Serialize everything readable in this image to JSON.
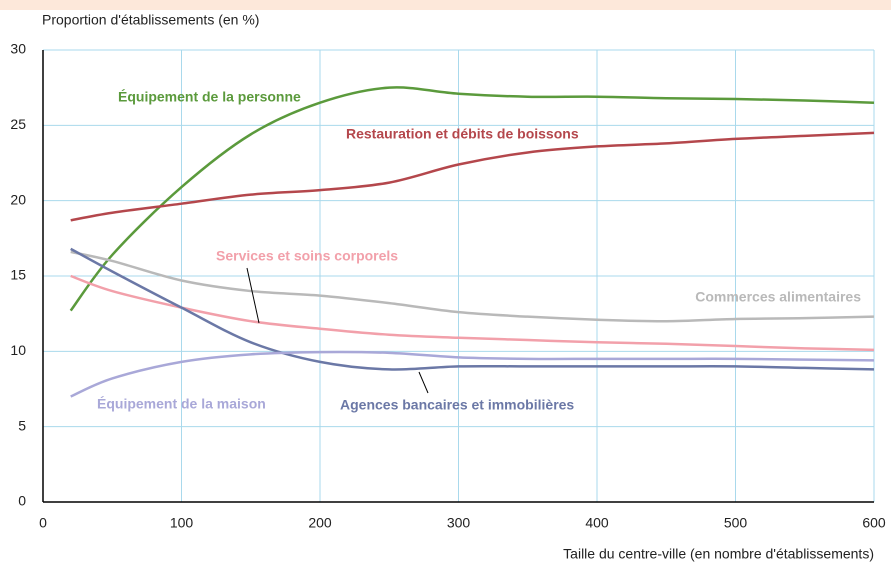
{
  "chart_data": {
    "type": "line",
    "y_label": "Proportion d'établissements (en %)",
    "x_label": "Taille du centre-ville (en nombre d'établissements)",
    "x": [
      20,
      50,
      100,
      150,
      200,
      250,
      300,
      350,
      400,
      450,
      500,
      550,
      600
    ],
    "series": [
      {
        "name": "Équipement de la personne",
        "color": "#5b9a3c",
        "values": [
          12.7,
          16.4,
          20.9,
          24.4,
          26.5,
          27.5,
          27.1,
          26.9,
          26.9,
          26.8,
          26.75,
          26.65,
          26.5
        ]
      },
      {
        "name": "Restauration et débits de boissons",
        "color": "#b4474c",
        "values": [
          18.7,
          19.2,
          19.8,
          20.4,
          20.7,
          21.2,
          22.4,
          23.2,
          23.6,
          23.8,
          24.1,
          24.3,
          24.5
        ]
      },
      {
        "name": "Services et soins corporels",
        "color": "#f2a0aa",
        "values": [
          15.0,
          14.0,
          12.9,
          12.0,
          11.5,
          11.1,
          10.9,
          10.75,
          10.6,
          10.5,
          10.35,
          10.2,
          10.1
        ]
      },
      {
        "name": "Commerces alimentaires",
        "color": "#b9b9b9",
        "values": [
          16.6,
          16.0,
          14.7,
          14.0,
          13.7,
          13.2,
          12.6,
          12.3,
          12.1,
          12.0,
          12.15,
          12.2,
          12.3
        ]
      },
      {
        "name": "Agences bancaires et immobilières",
        "color": "#6b78a6",
        "values": [
          16.8,
          15.3,
          12.9,
          10.6,
          9.3,
          8.8,
          9.0,
          9.0,
          9.0,
          9.0,
          9.0,
          8.9,
          8.8
        ]
      },
      {
        "name": "Équipement de la maison",
        "color": "#a9a8d8",
        "values": [
          7.0,
          8.2,
          9.3,
          9.8,
          9.95,
          9.9,
          9.6,
          9.5,
          9.5,
          9.5,
          9.5,
          9.45,
          9.4
        ]
      }
    ],
    "xlim": [
      0,
      600
    ],
    "xticks": [
      0,
      100,
      200,
      300,
      400,
      500,
      600
    ],
    "ylim": [
      0,
      30
    ],
    "yticks": [
      0,
      5,
      10,
      15,
      20,
      25,
      30
    ],
    "grid": true
  }
}
